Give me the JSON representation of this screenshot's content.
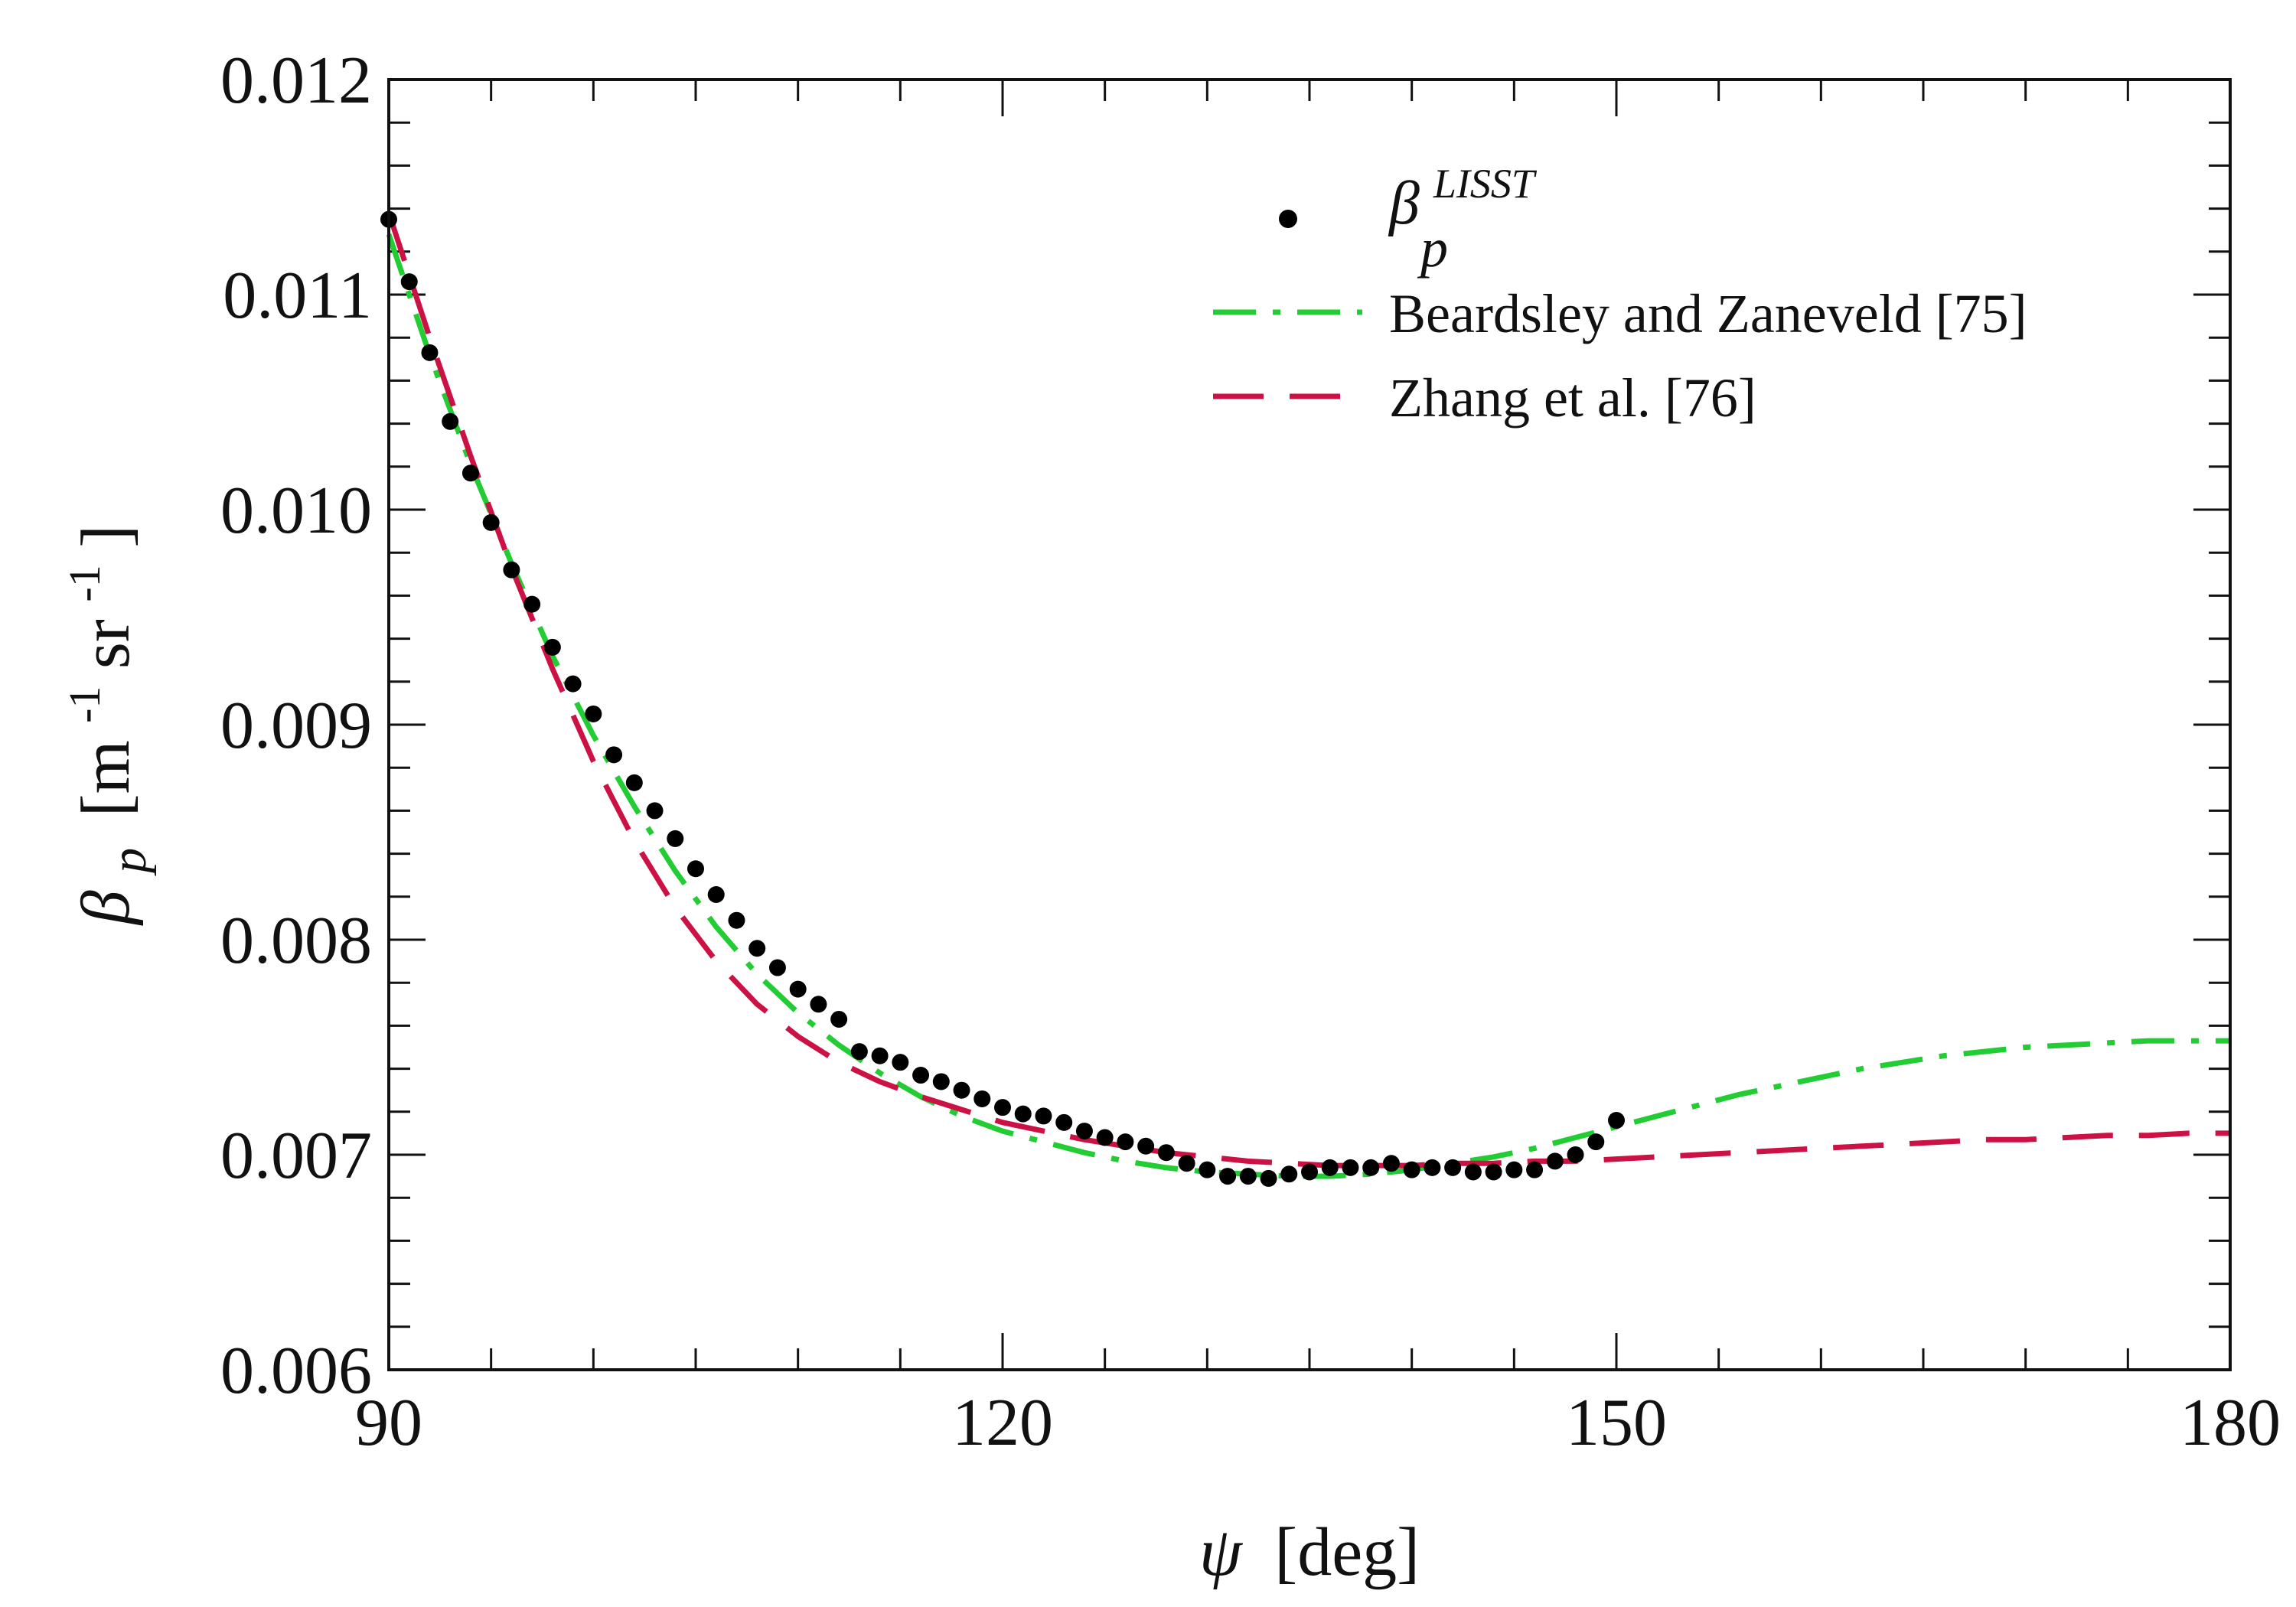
{
  "chart_data": {
    "type": "line",
    "title": "",
    "xlabel": "ψ [deg]",
    "xlabel_parts": {
      "symbol": "ψ",
      "unit": "[deg]"
    },
    "ylabel": "β_p [m^-1 sr^-1]",
    "ylabel_parts": {
      "symbol": "β",
      "subscript": "p",
      "unit_open": "[m",
      "exp1": "-1",
      "mid": " sr",
      "exp2": "-1",
      "unit_close": "]"
    },
    "xlim": [
      90,
      180
    ],
    "ylim": [
      0.006,
      0.012
    ],
    "x_ticks": [
      90,
      120,
      150,
      180
    ],
    "x_tick_labels": [
      "90",
      "120",
      "150",
      "180"
    ],
    "x_minor_step": 5,
    "y_ticks": [
      0.006,
      0.007,
      0.008,
      0.009,
      0.01,
      0.011,
      0.012
    ],
    "y_tick_labels": [
      "0.006",
      "0.007",
      "0.008",
      "0.009",
      "0.010",
      "0.011",
      "0.012"
    ],
    "y_minor_step": 0.0002,
    "legend_position": "top-right",
    "series": [
      {
        "name": "β_p^LISST",
        "legend": {
          "symbol": "β",
          "sub": "p",
          "sup": "LISST"
        },
        "kind": "scatter",
        "color": "#000000",
        "x": [
          90.0,
          91.0,
          92.0,
          93.0,
          94.0,
          95.0,
          96.0,
          97.0,
          98.0,
          99.0,
          100.0,
          101.0,
          102.0,
          103.0,
          104.0,
          105.0,
          106.0,
          107.0,
          108.0,
          109.0,
          110.0,
          111.0,
          112.0,
          113.0,
          114.0,
          115.0,
          116.0,
          117.0,
          118.0,
          119.0,
          120.0,
          121.0,
          122.0,
          123.0,
          124.0,
          125.0,
          126.0,
          127.0,
          128.0,
          129.0,
          130.0,
          131.0,
          132.0,
          133.0,
          134.0,
          135.0,
          136.0,
          137.0,
          138.0,
          139.0,
          140.0,
          141.0,
          142.0,
          143.0,
          144.0,
          145.0,
          146.0,
          147.0,
          148.0,
          149.0,
          150.0
        ],
        "y": [
          0.01135,
          0.01106,
          0.01073,
          0.01041,
          0.01017,
          0.00994,
          0.00972,
          0.00956,
          0.00936,
          0.00919,
          0.00905,
          0.00886,
          0.00873,
          0.0086,
          0.00847,
          0.00833,
          0.00821,
          0.00809,
          0.00796,
          0.00787,
          0.00777,
          0.0077,
          0.00763,
          0.00748,
          0.00746,
          0.00743,
          0.00737,
          0.00734,
          0.0073,
          0.00726,
          0.00722,
          0.00719,
          0.00718,
          0.00715,
          0.00711,
          0.00708,
          0.00706,
          0.00704,
          0.00701,
          0.00696,
          0.00693,
          0.0069,
          0.0069,
          0.00689,
          0.00691,
          0.00692,
          0.00694,
          0.00694,
          0.00694,
          0.00696,
          0.00693,
          0.00694,
          0.00694,
          0.00692,
          0.00692,
          0.00693,
          0.00693,
          0.00697,
          0.007,
          0.00706,
          0.00716
        ]
      },
      {
        "name": "Beardsley and Zaneveld [75]",
        "kind": "line",
        "dash": "dashdot",
        "color": "#22cc33",
        "x": [
          90,
          92,
          94,
          96,
          98,
          100,
          102,
          104,
          106,
          108,
          110,
          112,
          114,
          116,
          118,
          120,
          122,
          124,
          126,
          128,
          130,
          132,
          134,
          136,
          138,
          140,
          142,
          144,
          146,
          148,
          150,
          152,
          154,
          156,
          158,
          160,
          162,
          164,
          166,
          168,
          170,
          172,
          174,
          176,
          178,
          180
        ],
        "y": [
          0.01128,
          0.01072,
          0.01021,
          0.00975,
          0.00932,
          0.00895,
          0.00862,
          0.00832,
          0.00806,
          0.00784,
          0.00766,
          0.00751,
          0.00738,
          0.00727,
          0.00718,
          0.00711,
          0.00706,
          0.00701,
          0.00697,
          0.00694,
          0.00692,
          0.00691,
          0.0069,
          0.0069,
          0.00691,
          0.00693,
          0.00696,
          0.00699,
          0.00703,
          0.00708,
          0.00713,
          0.00718,
          0.00723,
          0.00728,
          0.00732,
          0.00736,
          0.0074,
          0.00743,
          0.00746,
          0.00748,
          0.0075,
          0.00751,
          0.00752,
          0.00753,
          0.00753,
          0.00753
        ]
      },
      {
        "name": "Zhang et al. [76]",
        "kind": "line",
        "dash": "dashed",
        "color": "#cc1144",
        "x": [
          90,
          92,
          94,
          96,
          98,
          100,
          102,
          104,
          106,
          108,
          110,
          112,
          114,
          116,
          118,
          120,
          122,
          124,
          126,
          128,
          130,
          132,
          134,
          136,
          138,
          140,
          142,
          144,
          146,
          148,
          150,
          152,
          154,
          156,
          158,
          160,
          162,
          164,
          166,
          168,
          170,
          172,
          174,
          176,
          178,
          180
        ],
        "y": [
          0.01138,
          0.0108,
          0.01025,
          0.00973,
          0.00926,
          0.00883,
          0.00846,
          0.00815,
          0.0079,
          0.0077,
          0.00755,
          0.00743,
          0.00734,
          0.00727,
          0.00721,
          0.00715,
          0.00711,
          0.00707,
          0.00704,
          0.00701,
          0.00699,
          0.00697,
          0.00696,
          0.00695,
          0.00695,
          0.00695,
          0.00696,
          0.00696,
          0.00697,
          0.00697,
          0.00698,
          0.00699,
          0.007,
          0.00701,
          0.00702,
          0.00703,
          0.00704,
          0.00705,
          0.00706,
          0.00707,
          0.00707,
          0.00708,
          0.00709,
          0.00709,
          0.0071,
          0.0071
        ]
      }
    ]
  }
}
